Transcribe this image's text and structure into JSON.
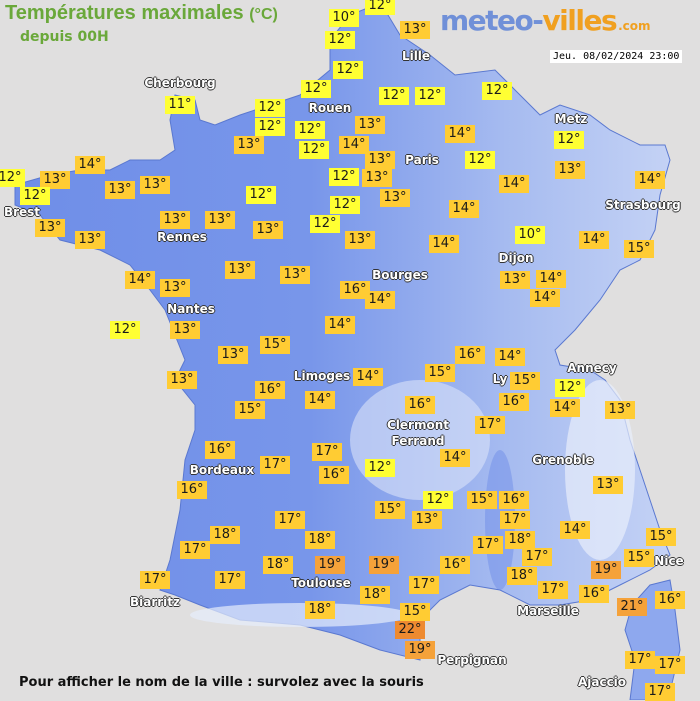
{
  "header": {
    "title": "Températures maximales",
    "title_unit": "(°C)",
    "subtitle": "depuis 00H"
  },
  "logo": {
    "part1": "meteo-",
    "part2": "villes",
    "part3": ".com"
  },
  "timestamp": "Jeu. 08/02/2024 23:00",
  "footer": "Pour afficher le nom de la ville : survolez avec la souris",
  "colors": {
    "sea": "#e0dfdf",
    "land_west": "#6f8ee8",
    "land_east": "#b4c6f2",
    "label_low": "#ffff33",
    "label_mid": "#ffcc33",
    "label_high": "#f5a23a",
    "label_max": "#ee8a30",
    "title": "#6aa83a"
  },
  "cities": [
    "Cherbourg",
    "Rouen",
    "Lille",
    "Paris",
    "Metz",
    "Strasbourg",
    "Brest",
    "Rennes",
    "Dijon",
    "Bourges",
    "Nantes",
    "Limoges",
    "Annecy",
    "Ly",
    "Clermont",
    "Ferrand",
    "Grenoble",
    "Bordeaux",
    "Toulouse",
    "Nice",
    "Biarritz",
    "Marseille",
    "Perpignan",
    "Ajaccio"
  ],
  "temperatures": [
    "10°",
    "12°",
    "12°",
    "13°",
    "12°",
    "12°",
    "12°",
    "12°",
    "12°",
    "12°",
    "13°",
    "13°",
    "14°",
    "13°",
    "12°",
    "13°",
    "13°",
    "12°",
    "12°",
    "12°",
    "12°",
    "14°",
    "12°",
    "12°",
    "13°",
    "14°",
    "14°",
    "14°",
    "10°",
    "14°",
    "14°",
    "15°",
    "13°",
    "14°",
    "14°",
    "11°",
    "14°",
    "12°",
    "13°",
    "12°",
    "13°",
    "13°",
    "12°",
    "13°",
    "13°",
    "13°",
    "12°",
    "13°",
    "13°",
    "13°",
    "13°",
    "13°",
    "14°",
    "13°",
    "16°",
    "14°",
    "12°",
    "13°",
    "14°",
    "13°",
    "15°",
    "13°",
    "16°",
    "15°",
    "14°",
    "14°",
    "15°",
    "16°",
    "14°",
    "15°",
    "16°",
    "12°",
    "14°",
    "13°",
    "16°",
    "17°",
    "16°",
    "17°",
    "17°",
    "16°",
    "16°",
    "14°",
    "12°",
    "13°",
    "15°",
    "12°",
    "13°",
    "15°",
    "16°",
    "17°",
    "14°",
    "17°",
    "18°",
    "18°",
    "17°",
    "18°",
    "19°",
    "19°",
    "17°",
    "18°",
    "17°",
    "16°",
    "17°",
    "18°",
    "17°",
    "15°",
    "15°",
    "19°",
    "17°",
    "17°",
    "18°",
    "18°",
    "16°",
    "21°",
    "16°",
    "15°",
    "22°",
    "19°",
    "17°",
    "17°",
    "17°"
  ]
}
